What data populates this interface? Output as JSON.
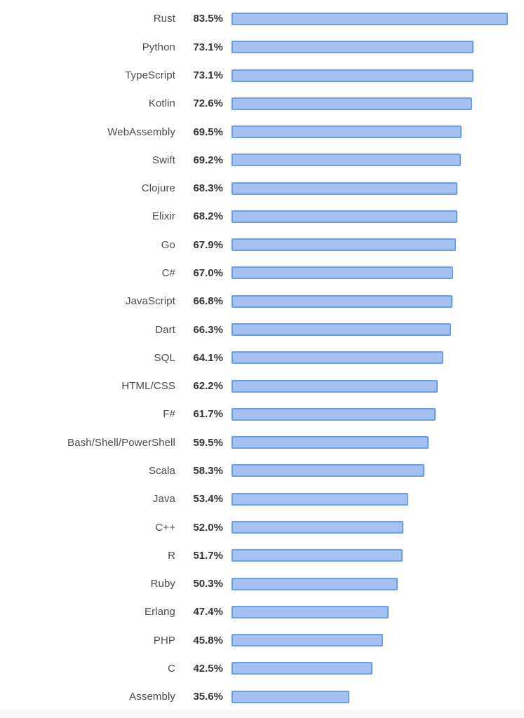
{
  "chart_data": {
    "type": "bar",
    "orientation": "horizontal",
    "title": "",
    "xlabel": "",
    "ylabel": "",
    "grid": false,
    "legend": false,
    "axis_scale_note": "no visible axis; bar lengths linear in percent, max bar = 83.5%",
    "categories": [
      "Rust",
      "Python",
      "TypeScript",
      "Kotlin",
      "WebAssembly",
      "Swift",
      "Clojure",
      "Elixir",
      "Go",
      "C#",
      "JavaScript",
      "Dart",
      "SQL",
      "HTML/CSS",
      "F#",
      "Bash/Shell/PowerShell",
      "Scala",
      "Java",
      "C++",
      "R",
      "Ruby",
      "Erlang",
      "PHP",
      "C",
      "Assembly"
    ],
    "values": [
      83.5,
      73.1,
      73.1,
      72.6,
      69.5,
      69.2,
      68.3,
      68.2,
      67.9,
      67.0,
      66.8,
      66.3,
      64.1,
      62.2,
      61.7,
      59.5,
      58.3,
      53.4,
      52.0,
      51.7,
      50.3,
      47.4,
      45.8,
      42.5,
      35.6
    ],
    "value_labels": [
      "83.5%",
      "73.1%",
      "73.1%",
      "72.6%",
      "69.5%",
      "69.2%",
      "68.3%",
      "68.2%",
      "67.9%",
      "67.0%",
      "66.8%",
      "66.3%",
      "64.1%",
      "62.2%",
      "61.7%",
      "59.5%",
      "58.3%",
      "53.4%",
      "52.0%",
      "51.7%",
      "50.3%",
      "47.4%",
      "45.8%",
      "42.5%",
      "35.6%"
    ],
    "colors": {
      "bar_fill": "#a3c2f2",
      "bar_border": "#6d9de8",
      "label_color": "#4a4a4a",
      "value_color": "#333333",
      "background": "#ffffff"
    }
  }
}
